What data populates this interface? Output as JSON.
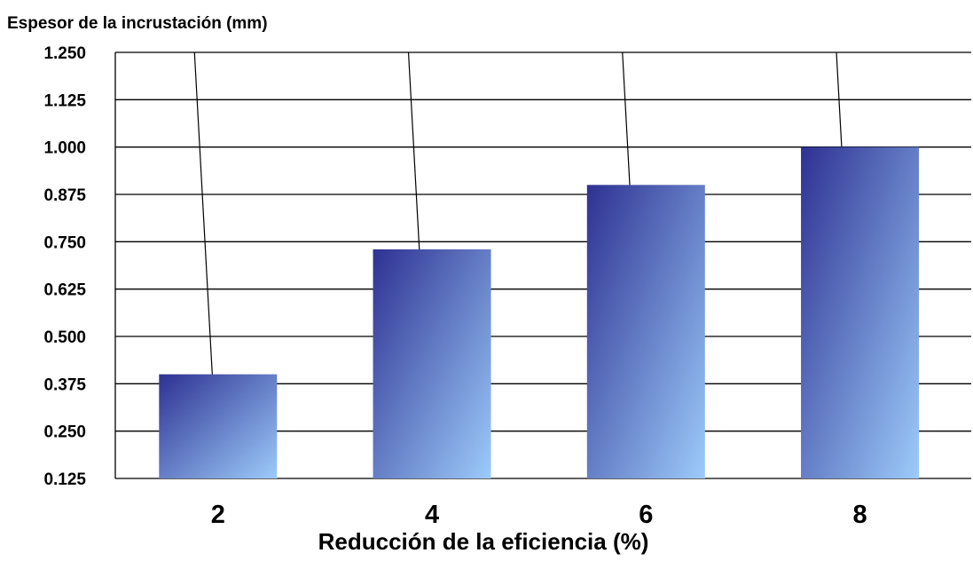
{
  "chart_data": {
    "type": "bar",
    "ylabel": "Espesor de la incrustación (mm)",
    "xlabel": "Reducción de la eficiencia (%)",
    "categories": [
      "2",
      "4",
      "6",
      "8"
    ],
    "series": [
      {
        "values": [
          0.4,
          0.73,
          0.9,
          1.0
        ]
      }
    ],
    "ylim": [
      0.125,
      1.25
    ],
    "yticks": [
      "0.125",
      "0.250",
      "0.375",
      "0.500",
      "0.625",
      "0.750",
      "0.875",
      "1.000",
      "1.125",
      "1.250"
    ],
    "grid": true,
    "legend": "none",
    "colors": {
      "bar_top": "#2e3192",
      "bar_bottom": "#9ccbfa",
      "grid": "#000000"
    }
  }
}
